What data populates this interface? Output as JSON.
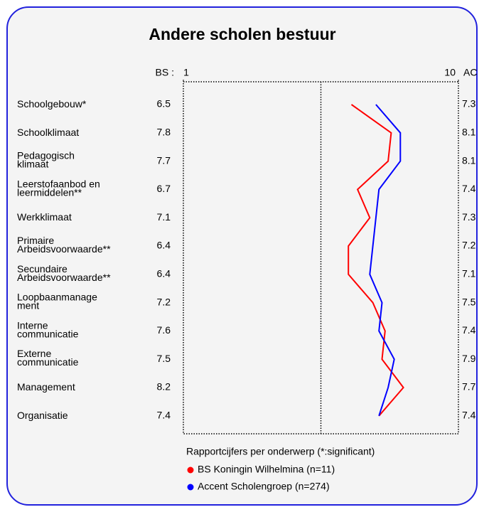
{
  "chart_data": {
    "type": "line",
    "orientation": "horizontal",
    "title": "Andere scholen bestuur",
    "left_label": "BS :",
    "right_label": "AC",
    "categories": [
      "Schoolgebouw*",
      "Schoolklimaat",
      "Pedagogisch\nklimaat",
      "Leerstofaanbod en\nleermiddelen**",
      "Werkklimaat",
      "Primaire\nArbeidsvoorwaarde**",
      "Secundaire\nArbeidsvoorwaarde**",
      "Loopbaanmanage\nment",
      "Interne\ncommunicatie",
      "Externe\ncommunicatie",
      "Management",
      "Organisatie"
    ],
    "series": [
      {
        "name": "BS Koningin Wilhelmina (n=11)",
        "color": "#ff0000",
        "values": [
          6.5,
          7.8,
          7.7,
          6.7,
          7.1,
          6.4,
          6.4,
          7.2,
          7.6,
          7.5,
          8.2,
          7.4
        ]
      },
      {
        "name": "Accent Scholengroep (n=274)",
        "color": "#0000ff",
        "values": [
          7.3,
          8.1,
          8.1,
          7.4,
          7.3,
          7.2,
          7.1,
          7.5,
          7.4,
          7.9,
          7.7,
          7.4
        ]
      }
    ],
    "xlim": [
      1,
      10
    ],
    "xticks": [
      1,
      10
    ],
    "legend_title": "Rapportcijfers per onderwerp (*:significant)"
  }
}
